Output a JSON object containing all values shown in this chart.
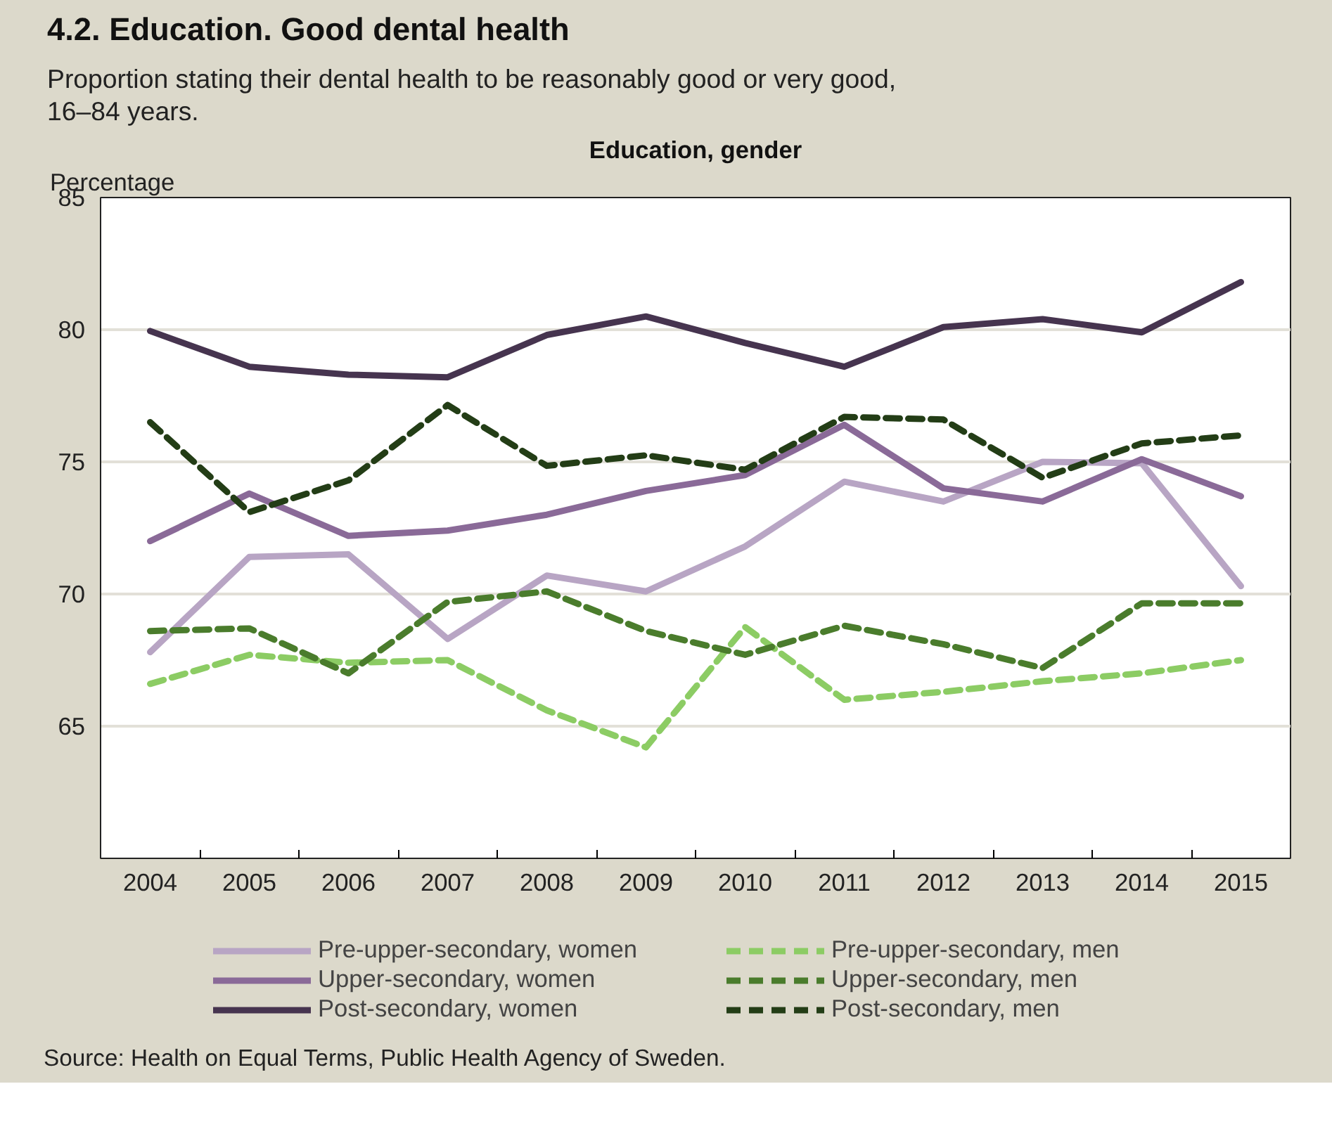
{
  "chart_data": {
    "type": "line",
    "title": "4.2. Education. Good dental health",
    "subtitle": "Proportion stating their dental health to be reasonably good or very good,\n16–84 years.",
    "ylabel": "Percentage",
    "annotations": [
      "Education, gender",
      "Source: Health on Equal Terms, Public Health Agency of Sweden."
    ],
    "categories": [
      "2004",
      "2005",
      "2006",
      "2007",
      "2008",
      "2009",
      "2010",
      "2011",
      "2012",
      "2013",
      "2014",
      "2015"
    ],
    "ylim": [
      60,
      85
    ],
    "yticks": [
      65,
      70,
      75,
      80,
      85
    ],
    "grid": "y",
    "legend": "bottom",
    "marker": "none",
    "series": [
      {
        "name": "Pre-upper-secondary, women",
        "color": "#b8a5c4",
        "line_style": "solid",
        "values": [
          67.8,
          71.4,
          71.5,
          68.3,
          70.7,
          70.1,
          71.8,
          74.25,
          73.5,
          75.0,
          74.95,
          70.3
        ]
      },
      {
        "name": "Upper-secondary, women",
        "color": "#8a6a98",
        "line_style": "solid",
        "values": [
          72.0,
          73.8,
          72.2,
          72.4,
          73.0,
          73.9,
          74.5,
          76.4,
          74.0,
          73.5,
          75.1,
          73.7
        ]
      },
      {
        "name": "Post-secondary, women",
        "color": "#46344f",
        "line_style": "solid",
        "values": [
          79.95,
          78.6,
          78.3,
          78.2,
          79.8,
          80.5,
          79.5,
          78.6,
          80.1,
          80.4,
          79.9,
          81.8
        ]
      },
      {
        "name": "Pre-upper-secondary, men",
        "color": "#8ccc64",
        "line_style": "dashed",
        "values": [
          66.6,
          67.7,
          67.4,
          67.5,
          65.6,
          64.2,
          68.75,
          66.0,
          66.3,
          66.7,
          67.0,
          67.5
        ]
      },
      {
        "name": "Upper-secondary, men",
        "color": "#4a7c2c",
        "line_style": "dashed",
        "values": [
          68.6,
          68.7,
          67.0,
          69.7,
          70.1,
          68.6,
          67.7,
          68.8,
          68.1,
          67.2,
          69.65,
          69.65
        ]
      },
      {
        "name": "Post-secondary, men",
        "color": "#233d16",
        "line_style": "dashed",
        "values": [
          76.5,
          73.1,
          74.3,
          77.15,
          74.85,
          75.25,
          74.7,
          76.7,
          76.6,
          74.4,
          75.7,
          76.0
        ]
      }
    ]
  }
}
